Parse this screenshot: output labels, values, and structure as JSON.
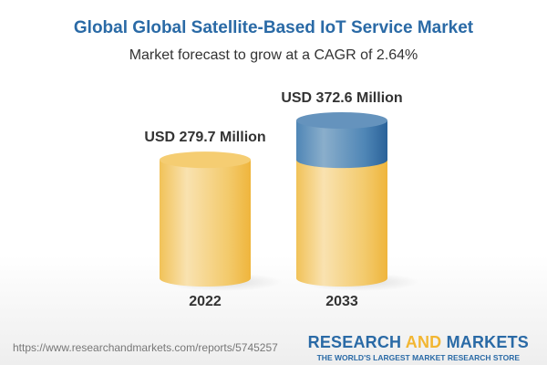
{
  "title": "Global Global Satellite-Based IoT Service Market",
  "subtitle": "Market forecast to grow at a CAGR of 2.64%",
  "chart_data": {
    "type": "bar",
    "style": "3d-cylinder",
    "categories": [
      "2022",
      "2033"
    ],
    "values": [
      279.7,
      372.6
    ],
    "data_labels": [
      "USD 279.7 Million",
      "USD 372.6 Million"
    ],
    "unit": "USD Million",
    "colors": {
      "base": "#f2c45a",
      "growth": "#3c78aa"
    }
  },
  "footer": {
    "url": "https://www.researchandmarkets.com/reports/5745257",
    "logo_part1": "RESEARCH ",
    "logo_part2": "AND",
    "logo_part3": " MARKETS",
    "tagline": "THE WORLD'S LARGEST MARKET RESEARCH STORE"
  }
}
